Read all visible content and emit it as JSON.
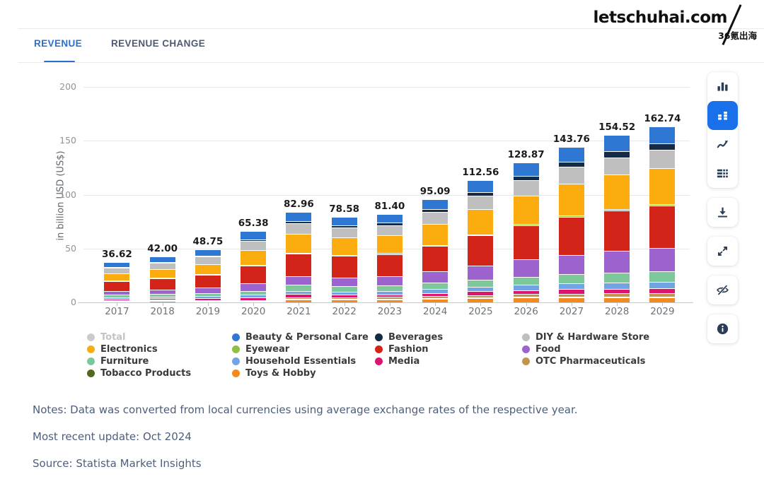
{
  "logo": {
    "main": "letschuhai.com",
    "sub": "36氪出海"
  },
  "tabs": [
    {
      "label": "REVENUE",
      "active": true
    },
    {
      "label": "REVENUE CHANGE",
      "active": false
    }
  ],
  "toolbar": {
    "group_buttons": [
      {
        "name": "column-chart",
        "active": false
      },
      {
        "name": "stacked-chart",
        "active": true
      },
      {
        "name": "line-chart",
        "active": false
      },
      {
        "name": "table",
        "active": false
      }
    ],
    "single_buttons": [
      {
        "name": "download",
        "active": false
      },
      {
        "name": "fullscreen",
        "active": false
      },
      {
        "name": "hide-series",
        "active": false
      },
      {
        "name": "info",
        "active": false
      }
    ],
    "active_color": "#1a70e8"
  },
  "chart_data": {
    "type": "bar",
    "stacked": true,
    "title": "",
    "ylabel": "in billion USD (US$)",
    "ylim": [
      0,
      200
    ],
    "yticks": [
      0,
      50,
      100,
      150,
      200
    ],
    "grid": true,
    "categories": [
      "2017",
      "2018",
      "2019",
      "2020",
      "2021",
      "2022",
      "2023",
      "2024",
      "2025",
      "2026",
      "2027",
      "2028",
      "2029"
    ],
    "totals": [
      "36.62",
      "42.00",
      "48.75",
      "65.38",
      "82.96",
      "78.58",
      "81.40",
      "95.09",
      "112.56",
      "128.87",
      "143.76",
      "154.52",
      "162.74"
    ],
    "series": [
      {
        "name": "Beauty & Personal Care",
        "color": "#2e78d3",
        "values": [
          4.1,
          4.6,
          5.3,
          6.8,
          7.4,
          7.1,
          7.3,
          8.4,
          10.0,
          11.6,
          13.2,
          14.4,
          15.3
        ]
      },
      {
        "name": "Beverages",
        "color": "#152a45",
        "values": [
          0.85,
          1.0,
          1.2,
          1.7,
          2.2,
          2.3,
          2.5,
          3.0,
          3.6,
          4.2,
          4.9,
          5.5,
          6.0
        ]
      },
      {
        "name": "DIY & Hardware Store",
        "color": "#bfbfbf",
        "values": [
          5.4,
          6.0,
          6.8,
          8.8,
          9.8,
          9.2,
          9.4,
          11.0,
          12.8,
          14.2,
          15.4,
          16.2,
          16.8
        ]
      },
      {
        "name": "Electronics",
        "color": "#fbac0e",
        "values": [
          6.5,
          7.9,
          9.6,
          13.5,
          17.6,
          16.4,
          16.8,
          19.6,
          23.2,
          26.6,
          29.8,
          31.8,
          33.4
        ]
      },
      {
        "name": "Eyewear",
        "color": "#8dc043",
        "values": [
          0.3,
          0.35,
          0.42,
          0.55,
          0.7,
          0.7,
          0.75,
          0.9,
          1.1,
          1.3,
          1.5,
          1.7,
          1.8
        ]
      },
      {
        "name": "Fashion",
        "color": "#d22418",
        "values": [
          9.6,
          10.8,
          12.4,
          16.8,
          21.6,
          20.4,
          20.8,
          23.8,
          27.8,
          31.6,
          35.0,
          37.4,
          39.0
        ]
      },
      {
        "name": "Food",
        "color": "#9c63ce",
        "values": [
          3.6,
          4.3,
          5.2,
          7.0,
          7.8,
          7.9,
          8.6,
          10.6,
          13.2,
          15.8,
          18.2,
          20.2,
          21.8
        ]
      },
      {
        "name": "Furniture",
        "color": "#7cc89b",
        "values": [
          2.05,
          2.4,
          2.8,
          3.8,
          5.6,
          5.1,
          5.2,
          5.9,
          6.9,
          7.8,
          8.6,
          9.2,
          9.7
        ]
      },
      {
        "name": "Household Essentials",
        "color": "#72a3e3",
        "values": [
          1.35,
          1.6,
          1.9,
          2.6,
          3.0,
          2.9,
          3.0,
          3.5,
          4.2,
          4.8,
          5.4,
          5.8,
          6.1
        ]
      },
      {
        "name": "Media",
        "color": "#de1370",
        "values": [
          1.35,
          1.4,
          1.6,
          2.2,
          2.9,
          2.6,
          2.6,
          3.0,
          3.4,
          3.8,
          4.2,
          4.4,
          4.6
        ]
      },
      {
        "name": "OTC Pharmaceuticals",
        "color": "#c2954e",
        "values": [
          0.45,
          0.43,
          0.5,
          0.7,
          1.5,
          1.4,
          1.5,
          1.7,
          2.0,
          2.4,
          2.7,
          2.9,
          3.1
        ]
      },
      {
        "name": "Tobacco Products",
        "color": "#51691a",
        "values": [
          0.11,
          0.12,
          0.13,
          0.15,
          0.16,
          0.16,
          0.16,
          0.17,
          0.19,
          0.21,
          0.23,
          0.25,
          0.26
        ]
      },
      {
        "name": "Toys & Hobby",
        "color": "#f28a20",
        "values": [
          0.96,
          1.1,
          0.9,
          0.78,
          2.7,
          2.42,
          2.79,
          3.52,
          4.17,
          4.56,
          4.63,
          4.77,
          4.88
        ]
      }
    ]
  },
  "legend": {
    "items": [
      {
        "label": "Total",
        "color": "#cbcbcb",
        "muted": true
      },
      {
        "label": "Beauty & Personal Care",
        "color": "#2e78d3",
        "muted": false
      },
      {
        "label": "Beverages",
        "color": "#152a45",
        "muted": false
      },
      {
        "label": "DIY & Hardware Store",
        "color": "#bfbfbf",
        "muted": false
      },
      {
        "label": "Electronics",
        "color": "#fbac0e",
        "muted": false
      },
      {
        "label": "Eyewear",
        "color": "#8dc043",
        "muted": false
      },
      {
        "label": "Fashion",
        "color": "#d22418",
        "muted": false
      },
      {
        "label": "Food",
        "color": "#9c63ce",
        "muted": false
      },
      {
        "label": "Furniture",
        "color": "#7cc89b",
        "muted": false
      },
      {
        "label": "Household Essentials",
        "color": "#72a3e3",
        "muted": false
      },
      {
        "label": "Media",
        "color": "#de1370",
        "muted": false
      },
      {
        "label": "OTC Pharmaceuticals",
        "color": "#c2954e",
        "muted": false
      },
      {
        "label": "Tobacco Products",
        "color": "#51691a",
        "muted": false
      },
      {
        "label": "Toys & Hobby",
        "color": "#f28a20",
        "muted": false
      }
    ]
  },
  "notes": {
    "lines": [
      "Notes: Data was converted from local currencies using average exchange rates of the respective year.",
      "Most recent update: Oct 2024",
      "Source: Statista Market Insights"
    ]
  }
}
